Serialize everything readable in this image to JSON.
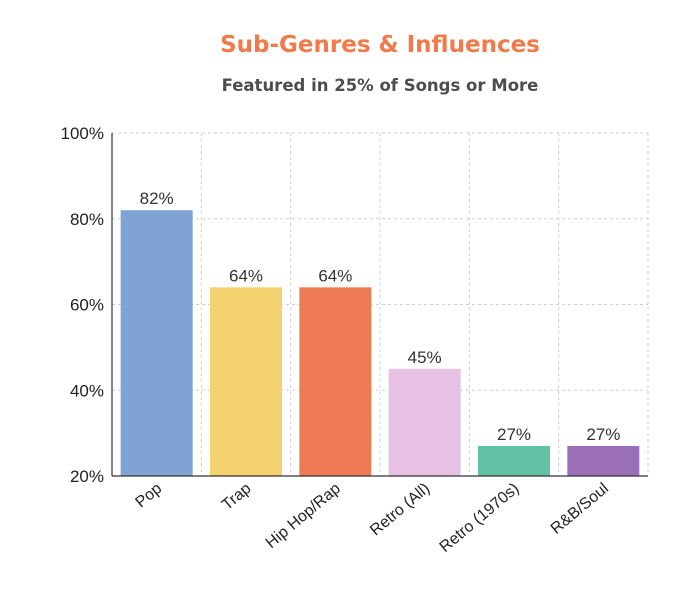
{
  "chart_data": {
    "type": "bar",
    "title": "Sub-Genres & Influences",
    "subtitle": "Featured in 25% of Songs or More",
    "categories": [
      "Pop",
      "Trap",
      "Hip Hop/Rap",
      "Retro (All)",
      "Retro (1970s)",
      "R&B/Soul"
    ],
    "values": [
      82,
      64,
      64,
      45,
      27,
      27
    ],
    "data_labels": [
      "82%",
      "64%",
      "64%",
      "45%",
      "27%",
      "27%"
    ],
    "colors": [
      "#7fa3d4",
      "#f3d26f",
      "#ef7b54",
      "#e6c1e4",
      "#62c1a6",
      "#9b6fb8"
    ],
    "xlabel": "",
    "ylabel": "",
    "ylim": [
      20,
      100
    ],
    "yticks": [
      20,
      40,
      60,
      80,
      100
    ],
    "ytick_labels": [
      "20%",
      "40%",
      "60%",
      "80%",
      "100%"
    ],
    "grid": true,
    "title_color": "#f07a4a"
  }
}
